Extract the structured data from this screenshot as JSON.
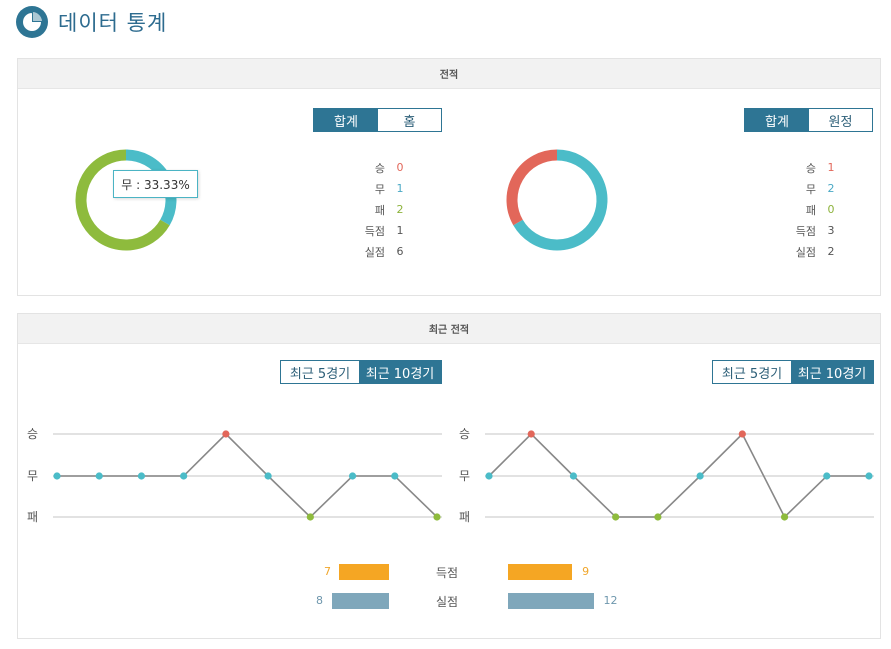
{
  "header": {
    "title": "데이터 통계",
    "icon": "pie-chart-icon"
  },
  "colors": {
    "win": "#e2675a",
    "draw": "#4bbcc8",
    "lose": "#8ebb3d",
    "accent": "#2e7594",
    "goals": "#f5a623",
    "conceded": "#7fa7bb"
  },
  "record": {
    "title": "전적",
    "left": {
      "tabs": [
        "합계",
        "홈"
      ],
      "active_tab": 0,
      "rows": [
        {
          "label": "승",
          "value": "0"
        },
        {
          "label": "무",
          "value": "1"
        },
        {
          "label": "패",
          "value": "2"
        },
        {
          "label": "득점",
          "value": "1"
        },
        {
          "label": "실점",
          "value": "6"
        }
      ],
      "tooltip": "무 : 33.33%"
    },
    "right": {
      "tabs": [
        "합계",
        "원정"
      ],
      "active_tab": 0,
      "rows": [
        {
          "label": "승",
          "value": "1"
        },
        {
          "label": "무",
          "value": "2"
        },
        {
          "label": "패",
          "value": "0"
        },
        {
          "label": "득점",
          "value": "3"
        },
        {
          "label": "실점",
          "value": "2"
        }
      ]
    }
  },
  "chart_data": [
    {
      "type": "pie",
      "categories": [
        "승",
        "무",
        "패"
      ],
      "values": [
        0,
        1,
        2
      ]
    },
    {
      "type": "pie",
      "categories": [
        "승",
        "무",
        "패"
      ],
      "values": [
        1,
        2,
        0
      ]
    },
    {
      "type": "line",
      "y_categories": [
        "승",
        "무",
        "패"
      ],
      "values": [
        "무",
        "무",
        "무",
        "무",
        "승",
        "무",
        "패",
        "무",
        "무",
        "패"
      ]
    },
    {
      "type": "line",
      "y_categories": [
        "승",
        "무",
        "패"
      ],
      "values": [
        "무",
        "승",
        "무",
        "패",
        "패",
        "무",
        "승",
        "패",
        "무",
        "무"
      ]
    },
    {
      "type": "bar",
      "categories": [
        "득점",
        "실점"
      ],
      "series": [
        {
          "values": [
            7,
            8
          ]
        },
        {
          "values": [
            9,
            12
          ]
        }
      ]
    }
  ],
  "recent": {
    "title": "최근 전적",
    "left_tabs": [
      "최근 5경기",
      "최근 10경기"
    ],
    "left_active": 1,
    "right_tabs": [
      "최근 5경기",
      "최근 10경기"
    ],
    "right_active": 1,
    "y_labels": [
      "승",
      "무",
      "패"
    ],
    "bars": [
      {
        "label": "득점",
        "left": "7",
        "right": "9"
      },
      {
        "label": "실점",
        "left": "8",
        "right": "12"
      }
    ]
  }
}
